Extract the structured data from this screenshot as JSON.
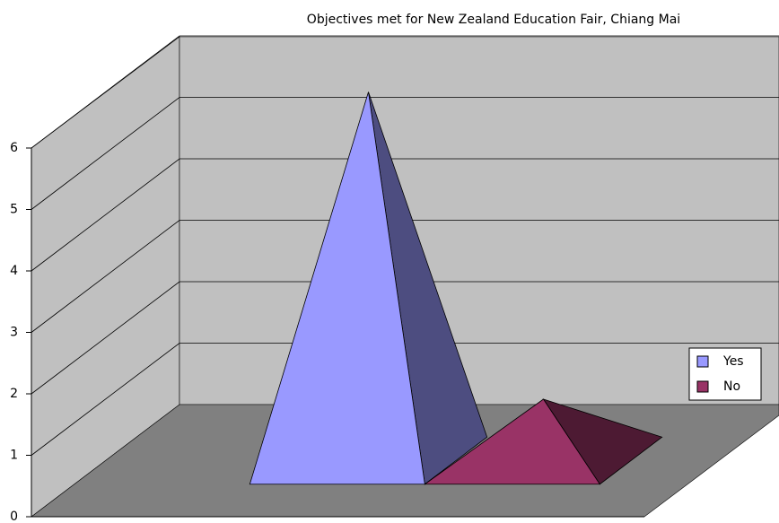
{
  "chart_data": {
    "type": "pyramid3d",
    "title": "Objectives met for New Zealand Education Fair, Chiang Mai",
    "categories": [
      null
    ],
    "series": [
      {
        "name": "Yes",
        "color": "#9999ff",
        "values": [
          6
        ]
      },
      {
        "name": "No",
        "color": "#993366",
        "values": [
          1
        ]
      }
    ],
    "ylim": [
      0,
      6
    ],
    "yticks": [
      0,
      1,
      2,
      3,
      4,
      5,
      6
    ],
    "grid": true,
    "legend": "right"
  }
}
